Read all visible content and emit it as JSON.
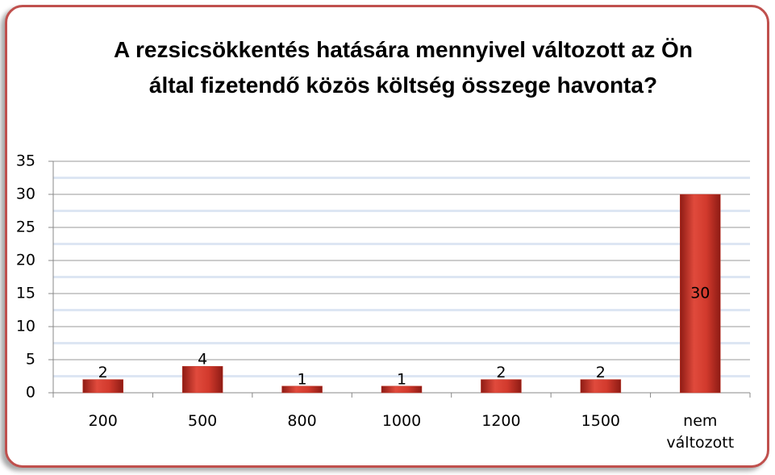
{
  "chart_data": {
    "type": "bar",
    "title": "A rezsicsökkentés hatására mennyivel változott az Ön által fizetendő közös költség összege havonta?",
    "categories": [
      "200",
      "500",
      "800",
      "1000",
      "1200",
      "1500",
      "nem változott"
    ],
    "values": [
      2,
      4,
      1,
      1,
      2,
      2,
      30
    ],
    "color": "#c0392b",
    "ylim": [
      0,
      35
    ],
    "yticks": [
      0,
      5,
      10,
      15,
      20,
      25,
      30,
      35
    ],
    "grid": true
  }
}
